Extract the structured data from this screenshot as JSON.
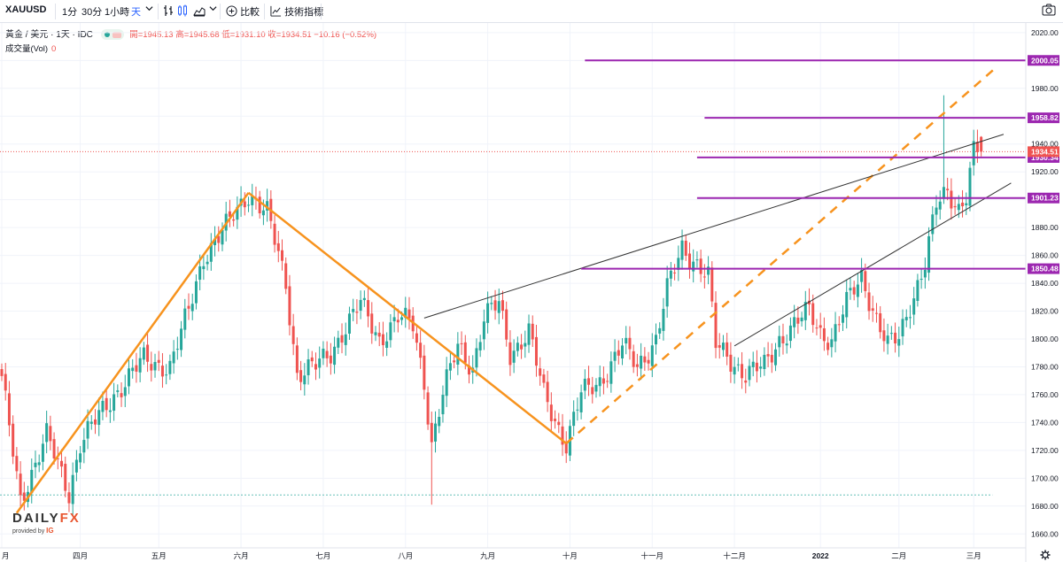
{
  "toolbar": {
    "symbol": "XAUUSD",
    "intervals": [
      "1分",
      "30分",
      "1小時",
      "天"
    ],
    "active_interval": "天",
    "compare_label": "比較",
    "indicators_label": "技術指標"
  },
  "legend": {
    "name": "黃金 / 美元 · 1天 · IDC",
    "ohlc_text": "開=1945.13 高=1945.68 低=1931.10 收=1934.51 −10.16 (−0.52%)",
    "volume_label": "成交量(Vol)",
    "volume_value": "0"
  },
  "logo": {
    "main_a": "DAILY",
    "main_b": "FX",
    "sub": "provided by",
    "sub_brand": "IG"
  },
  "colors": {
    "up": "#26a69a",
    "down": "#ef5350",
    "levels": "#9c27b0",
    "pattern": "#f7931e",
    "trend": "#333333"
  },
  "chart_data": {
    "type": "candlestick",
    "y_axis": {
      "min": 1650,
      "max": 2025,
      "ticks": [
        1660,
        1680,
        1700,
        1720,
        1740,
        1760,
        1780,
        1800,
        1820,
        1840,
        1860,
        1880,
        1900,
        1920,
        1940,
        1960,
        1980,
        2000,
        2020
      ],
      "tick_labels": [
        "1660.00",
        "1680.00",
        "1700.00",
        "1720.00",
        "1740.00",
        "1760.00",
        "1780.00",
        "1800.00",
        "1820.00",
        "1840.00",
        "1860.00",
        "1880.00",
        "1900.00",
        "1920.00",
        "1940.00",
        "1960.00",
        "1980.00",
        "2000.00",
        "2020.00"
      ]
    },
    "x_axis": {
      "labels": [
        "月",
        "四月",
        "五月",
        "六月",
        "七月",
        "八月",
        "九月",
        "十月",
        "十一月",
        "十二月",
        "2022",
        "二月",
        "三月"
      ],
      "label_index": [
        0,
        21,
        42,
        64,
        86,
        108,
        130,
        152,
        174,
        196,
        219,
        240,
        260
      ]
    },
    "levels": [
      {
        "label": "2000.05",
        "value": 2000.05,
        "from_index": 156
      },
      {
        "label": "1958.82",
        "value": 1958.82,
        "from_index": 188
      },
      {
        "label": "1930.34",
        "value": 1930.34,
        "from_index": 186
      },
      {
        "label": "1901.23",
        "value": 1901.23,
        "from_index": 186
      },
      {
        "label": "1850.48",
        "value": 1850.48,
        "from_index": 155
      }
    ],
    "last_price": {
      "label": "1934.51",
      "value": 1934.51
    },
    "low_reference": 1688,
    "pattern_lines": [
      {
        "style": "solid",
        "from": [
          4,
          1675
        ],
        "to": [
          66,
          1905
        ]
      },
      {
        "style": "solid",
        "from": [
          66,
          1905
        ],
        "to": [
          151,
          1725
        ]
      },
      {
        "style": "dashed",
        "from": [
          151,
          1725
        ],
        "to": [
          266,
          1995
        ]
      }
    ],
    "trend_lines": [
      {
        "from": [
          113,
          1815
        ],
        "to": [
          268,
          1947
        ]
      },
      {
        "from": [
          196,
          1795
        ],
        "to": [
          270,
          1912
        ]
      }
    ],
    "anchors": [
      [
        0,
        1770
      ],
      [
        5,
        1685
      ],
      [
        12,
        1730
      ],
      [
        18,
        1690
      ],
      [
        21,
        1725
      ],
      [
        30,
        1760
      ],
      [
        38,
        1785
      ],
      [
        45,
        1780
      ],
      [
        50,
        1820
      ],
      [
        54,
        1860
      ],
      [
        60,
        1880
      ],
      [
        66,
        1905
      ],
      [
        71,
        1890
      ],
      [
        76,
        1840
      ],
      [
        79,
        1775
      ],
      [
        84,
        1780
      ],
      [
        88,
        1790
      ],
      [
        91,
        1805
      ],
      [
        96,
        1825
      ],
      [
        101,
        1800
      ],
      [
        106,
        1815
      ],
      [
        110,
        1810
      ],
      [
        113,
        1770
      ],
      [
        115,
        1725
      ],
      [
        118,
        1760
      ],
      [
        122,
        1795
      ],
      [
        126,
        1780
      ],
      [
        129,
        1815
      ],
      [
        133,
        1825
      ],
      [
        136,
        1790
      ],
      [
        141,
        1805
      ],
      [
        145,
        1760
      ],
      [
        151,
        1725
      ],
      [
        155,
        1760
      ],
      [
        160,
        1770
      ],
      [
        166,
        1795
      ],
      [
        170,
        1780
      ],
      [
        175,
        1800
      ],
      [
        178,
        1835
      ],
      [
        182,
        1865
      ],
      [
        186,
        1855
      ],
      [
        189,
        1845
      ],
      [
        191,
        1795
      ],
      [
        195,
        1785
      ],
      [
        199,
        1775
      ],
      [
        204,
        1780
      ],
      [
        208,
        1800
      ],
      [
        212,
        1810
      ],
      [
        216,
        1820
      ],
      [
        219,
        1805
      ],
      [
        222,
        1800
      ],
      [
        226,
        1825
      ],
      [
        230,
        1845
      ],
      [
        234,
        1815
      ],
      [
        237,
        1795
      ],
      [
        240,
        1800
      ],
      [
        243,
        1825
      ],
      [
        247,
        1855
      ],
      [
        250,
        1895
      ],
      [
        253,
        1905
      ],
      [
        256,
        1895
      ],
      [
        258,
        1905
      ],
      [
        260,
        1935
      ],
      [
        262,
        1934.51
      ]
    ],
    "last_candle": {
      "open": 1945.13,
      "high": 1945.68,
      "low": 1931.1,
      "close": 1934.51
    }
  }
}
